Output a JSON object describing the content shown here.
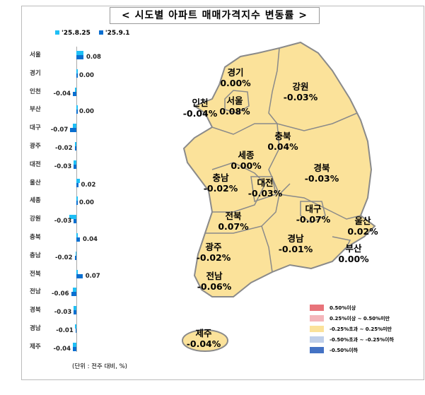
{
  "title": "< 시도별 아파트 매매가격지수 변동률 >",
  "legend": {
    "prev": "'25.8.25",
    "curr": "'25.9.1",
    "prev_color": "#1fbff5",
    "curr_color": "#0a6fd0"
  },
  "regions": [
    {
      "name": "서울",
      "prev": 0.08,
      "curr": 0.08,
      "label": "0.08"
    },
    {
      "name": "경기",
      "prev": 0.01,
      "curr": 0.0,
      "label": "0.00"
    },
    {
      "name": "인천",
      "prev": -0.02,
      "curr": -0.04,
      "label": "-0.04"
    },
    {
      "name": "부산",
      "prev": 0.0,
      "curr": 0.0,
      "label": "0.00"
    },
    {
      "name": "대구",
      "prev": -0.04,
      "curr": -0.07,
      "label": "-0.07"
    },
    {
      "name": "광주",
      "prev": -0.02,
      "curr": -0.02,
      "label": "-0.02"
    },
    {
      "name": "대전",
      "prev": -0.03,
      "curr": -0.03,
      "label": "-0.03"
    },
    {
      "name": "울산",
      "prev": 0.04,
      "curr": 0.02,
      "label": "0.02"
    },
    {
      "name": "세종",
      "prev": 0.01,
      "curr": 0.0,
      "label": "0.00"
    },
    {
      "name": "강원",
      "prev": -0.08,
      "curr": -0.03,
      "label": "-0.03"
    },
    {
      "name": "충북",
      "prev": 0.0,
      "curr": 0.04,
      "label": "0.04"
    },
    {
      "name": "충남",
      "prev": -0.01,
      "curr": -0.02,
      "label": "-0.02"
    },
    {
      "name": "전북",
      "prev": 0.01,
      "curr": 0.07,
      "label": "0.07"
    },
    {
      "name": "전남",
      "prev": -0.04,
      "curr": -0.06,
      "label": "-0.06"
    },
    {
      "name": "경북",
      "prev": -0.03,
      "curr": -0.03,
      "label": "-0.03"
    },
    {
      "name": "경남",
      "prev": -0.02,
      "curr": -0.01,
      "label": "-0.01"
    },
    {
      "name": "제주",
      "prev": -0.04,
      "curr": -0.04,
      "label": "-0.04"
    }
  ],
  "unit": "(단위 : 전주 대비, %)",
  "map_labels": [
    {
      "name": "경기",
      "value": "0.00%"
    },
    {
      "name": "강원",
      "value": "-0.03%"
    },
    {
      "name": "인천",
      "value": "-0.04%"
    },
    {
      "name": "서울",
      "value": "0.08%"
    },
    {
      "name": "충북",
      "value": "0.04%"
    },
    {
      "name": "세종",
      "value": "0.00%"
    },
    {
      "name": "경북",
      "value": "-0.03%"
    },
    {
      "name": "충남",
      "value": "-0.02%"
    },
    {
      "name": "대전",
      "value": "-0.03%"
    },
    {
      "name": "대구",
      "value": "-0.07%"
    },
    {
      "name": "울산",
      "value": "0.02%"
    },
    {
      "name": "전북",
      "value": "0.07%"
    },
    {
      "name": "경남",
      "value": "-0.01%"
    },
    {
      "name": "부산",
      "value": "0.00%"
    },
    {
      "name": "광주",
      "value": "-0.02%"
    },
    {
      "name": "전남",
      "value": "-0.06%"
    },
    {
      "name": "제주",
      "value": "-0.04%"
    }
  ],
  "map_legend": [
    {
      "label": "0.50%이상",
      "color": "#e8737a"
    },
    {
      "label": "0.25%이상 ~ 0.50%미만",
      "color": "#f4b6bb"
    },
    {
      "label": "-0.25%초과 ~ 0.25%미만",
      "color": "#fbe29a"
    },
    {
      "label": "-0.50%초과 ~ -0.25%이하",
      "color": "#bfcfea"
    },
    {
      "label": "-0.50%이하",
      "color": "#4472c4"
    }
  ]
}
